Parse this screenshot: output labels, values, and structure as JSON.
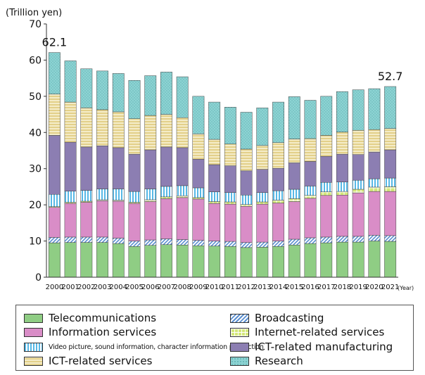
{
  "chart_data": {
    "type": "bar",
    "stacked": true,
    "unit_label": "(Trillion yen)",
    "x_unit_label": "(Year)",
    "ylim": [
      0,
      70
    ],
    "yticks": [
      0,
      10,
      20,
      30,
      40,
      50,
      60,
      70
    ],
    "grid": false,
    "categories": [
      "2000",
      "2001",
      "2002",
      "2003",
      "2004",
      "2005",
      "2006",
      "2007",
      "2008",
      "2009",
      "2010",
      "2011",
      "2012",
      "2013",
      "2014",
      "2015",
      "2016",
      "2017",
      "2018",
      "2019",
      "2020",
      "2021"
    ],
    "series": [
      {
        "name": "Telecommunications",
        "color": "#8fcd84",
        "pattern": "solid",
        "values": [
          9.5,
          9.6,
          9.6,
          9.6,
          9.3,
          8.5,
          8.8,
          9.0,
          8.9,
          8.7,
          8.6,
          8.5,
          8.2,
          8.3,
          8.5,
          8.9,
          9.3,
          9.5,
          9.7,
          9.7,
          10.0,
          9.9
        ]
      },
      {
        "name": "Broadcasting",
        "color": "#a9c6e8",
        "pattern": "diag",
        "values": [
          1.5,
          1.5,
          1.5,
          1.5,
          1.5,
          1.5,
          1.5,
          1.6,
          1.5,
          1.5,
          1.4,
          1.4,
          1.4,
          1.4,
          1.5,
          1.6,
          1.6,
          1.6,
          1.6,
          1.6,
          1.6,
          1.6
        ]
      },
      {
        "name": "Information services",
        "color": "#d98dc7",
        "pattern": "solid",
        "values": [
          8.3,
          9.3,
          9.6,
          10.0,
          10.2,
          10.4,
          10.6,
          11.1,
          11.6,
          11.4,
          10.4,
          10.3,
          10.0,
          10.5,
          10.5,
          10.4,
          10.9,
          11.5,
          11.4,
          12.0,
          12.1,
          12.2
        ]
      },
      {
        "name": "Internet-related services",
        "color": "#d4e77a",
        "pattern": "grid",
        "values": [
          0.2,
          0.3,
          0.3,
          0.3,
          0.3,
          0.3,
          0.5,
          0.5,
          0.5,
          0.4,
          0.5,
          0.6,
          0.5,
          0.6,
          0.8,
          0.8,
          0.8,
          1.0,
          1.0,
          1.0,
          1.2,
          1.3
        ]
      },
      {
        "name": "Video picture, sound information, character information production",
        "color": "#57b8e6",
        "pattern": "vstripe",
        "values": [
          3.4,
          3.1,
          3.0,
          3.0,
          3.1,
          3.0,
          3.0,
          2.9,
          2.8,
          2.7,
          2.7,
          2.6,
          2.6,
          2.6,
          2.6,
          2.6,
          2.6,
          2.6,
          2.6,
          2.5,
          2.3,
          2.4
        ]
      },
      {
        "name": "ICT-related manufacturing",
        "color": "#8c7eb2",
        "pattern": "solid",
        "values": [
          16.3,
          13.5,
          12.0,
          11.9,
          11.4,
          10.3,
          10.8,
          10.9,
          10.5,
          7.9,
          7.5,
          7.4,
          6.7,
          6.4,
          6.2,
          7.3,
          6.8,
          7.2,
          7.7,
          7.1,
          7.4,
          7.8
        ]
      },
      {
        "name": "ICT-related services",
        "color": "#e3d08a",
        "pattern": "hstripe",
        "values": [
          11.4,
          11.1,
          10.8,
          10.0,
          9.9,
          9.8,
          9.5,
          9.0,
          8.3,
          7.0,
          7.0,
          6.0,
          6.0,
          6.6,
          7.1,
          6.6,
          6.3,
          5.8,
          6.1,
          6.7,
          6.2,
          5.9
        ]
      },
      {
        "name": "Research",
        "color": "#8dd3d3",
        "pattern": "dots",
        "values": [
          11.5,
          11.4,
          10.8,
          10.7,
          10.6,
          10.6,
          11.0,
          11.7,
          11.3,
          10.4,
          10.3,
          10.2,
          10.2,
          10.4,
          11.2,
          11.7,
          10.6,
          10.8,
          11.2,
          11.2,
          11.3,
          11.6
        ]
      }
    ],
    "annotations": [
      {
        "category": "2000",
        "text": "62.1"
      },
      {
        "category": "2021",
        "text": "52.7"
      }
    ]
  },
  "legend": {
    "items": [
      {
        "label": "Telecommunications",
        "color": "#8fcd84",
        "pattern": "solid"
      },
      {
        "label": "Broadcasting",
        "color": "#a9c6e8",
        "pattern": "diag"
      },
      {
        "label": "Information services",
        "color": "#d98dc7",
        "pattern": "solid"
      },
      {
        "label": "Internet-related services",
        "color": "#d4e77a",
        "pattern": "grid"
      },
      {
        "label": "Video picture, sound information, character information production",
        "color": "#57b8e6",
        "pattern": "vstripe"
      },
      {
        "label": "ICT-related manufacturing",
        "color": "#8c7eb2",
        "pattern": "solid"
      },
      {
        "label": "ICT-related services",
        "color": "#e3d08a",
        "pattern": "hstripe"
      },
      {
        "label": "Research",
        "color": "#8dd3d3",
        "pattern": "dots"
      }
    ]
  }
}
